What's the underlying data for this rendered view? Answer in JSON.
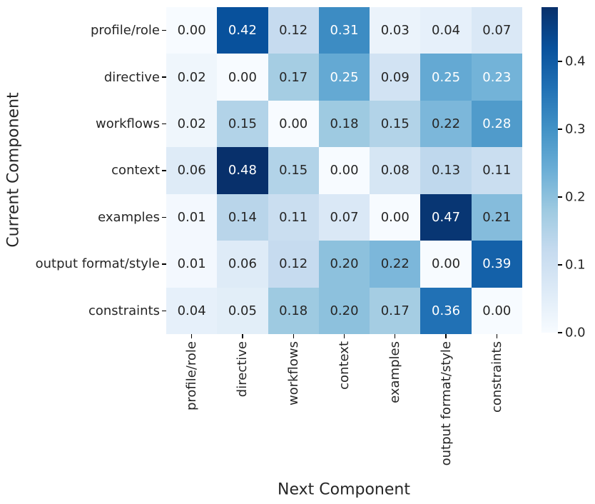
{
  "chart_data": {
    "type": "heatmap",
    "xlabel": "Next Component",
    "ylabel": "Current Component",
    "categories": [
      "profile/role",
      "directive",
      "workflows",
      "context",
      "examples",
      "output format/style",
      "constraints"
    ],
    "matrix": [
      [
        0.0,
        0.42,
        0.12,
        0.31,
        0.03,
        0.04,
        0.07
      ],
      [
        0.02,
        0.0,
        0.17,
        0.25,
        0.09,
        0.25,
        0.23
      ],
      [
        0.02,
        0.15,
        0.0,
        0.18,
        0.15,
        0.22,
        0.28
      ],
      [
        0.06,
        0.48,
        0.15,
        0.0,
        0.08,
        0.13,
        0.11
      ],
      [
        0.01,
        0.14,
        0.11,
        0.07,
        0.0,
        0.47,
        0.21
      ],
      [
        0.01,
        0.06,
        0.12,
        0.2,
        0.22,
        0.0,
        0.39
      ],
      [
        0.04,
        0.05,
        0.18,
        0.2,
        0.17,
        0.36,
        0.0
      ]
    ],
    "vmin": 0.0,
    "vmax": 0.48,
    "value_decimals": 2,
    "colorbar_ticks": [
      "0.0",
      "0.1",
      "0.2",
      "0.3",
      "0.4"
    ],
    "grid": false,
    "legend_position": "right-colorbar"
  },
  "colors": {
    "colormap_name": "Blues",
    "colormap_stops": [
      "#f7fbff",
      "#deebf7",
      "#c6dbef",
      "#9ecae1",
      "#6baed6",
      "#4292c6",
      "#2171b5",
      "#08519c",
      "#08306b"
    ],
    "annotation_dark_text": "#262626",
    "annotation_light_text": "#ffffff",
    "tick_color": "#000000",
    "background": "#ffffff"
  }
}
